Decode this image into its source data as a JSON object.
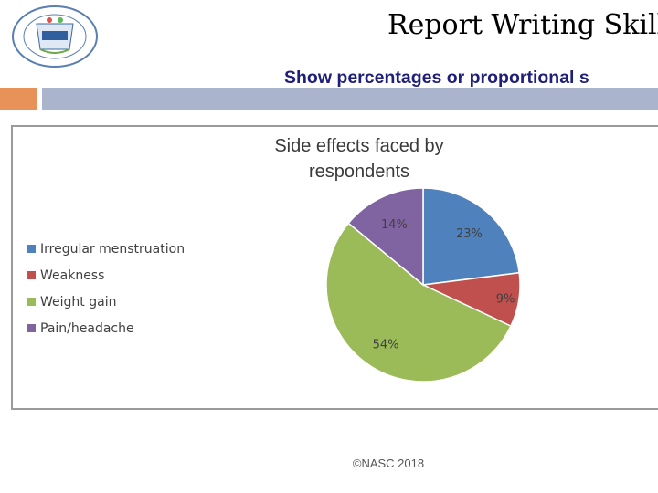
{
  "header": {
    "title": "Report Writing Skills ..",
    "subtitle": "Show percentages or proportional s"
  },
  "colors": {
    "accent_orange": "#e8925a",
    "header_bar": "#aab4cc",
    "subtitle_text": "#1f1f7a"
  },
  "logo": {
    "icon": "institution-seal-icon"
  },
  "chart_data": {
    "type": "pie",
    "title": "Side effects faced by respondents",
    "categories": [
      "Irregular menstruation",
      "Weakness",
      "Weight gain",
      "Pain/headache"
    ],
    "values": [
      23,
      9,
      54,
      14
    ],
    "labels": [
      "23%",
      "9%",
      "54%",
      "14%"
    ],
    "colors": [
      "#4f81bd",
      "#c0504d",
      "#9bbb59",
      "#8064a2"
    ],
    "legend_position": "left"
  },
  "footer": {
    "text": "©NASC 2018"
  }
}
